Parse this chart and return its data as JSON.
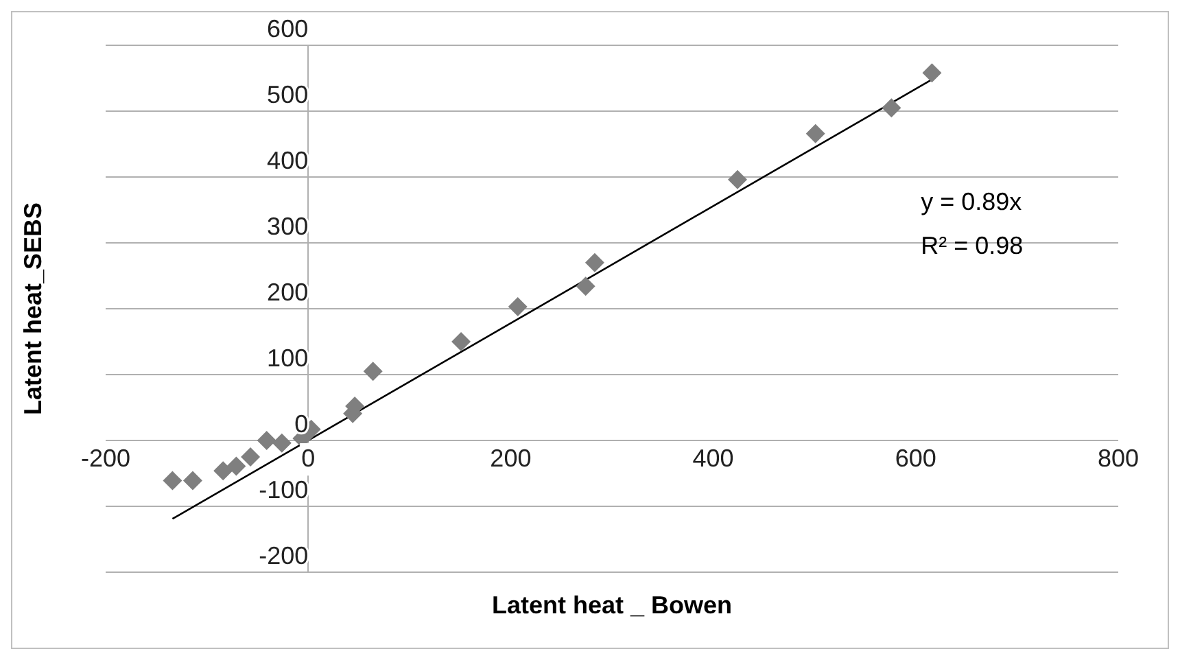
{
  "chart_data": {
    "type": "scatter",
    "xlabel": "Latent heat _ Bowen",
    "ylabel": "Latent heat_SEBS",
    "x": [
      -134,
      -114,
      -84,
      -71,
      -57,
      -41,
      -26,
      -6,
      3,
      44,
      46,
      64,
      151,
      207,
      274,
      283,
      424,
      501,
      576,
      616
    ],
    "series": [
      {
        "color": "#7f7f7f",
        "marker": "diamond",
        "values": [
          -61,
          -61,
          -46,
          -39,
          -25,
          0,
          -4,
          3,
          17,
          41,
          52,
          105,
          150,
          203,
          234,
          270,
          396,
          466,
          505,
          558
        ]
      },
      {
        "type": "line",
        "color": "#000000",
        "marker": "none",
        "x": [
          -134,
          616
        ],
        "values": [
          -119,
          548
        ]
      }
    ],
    "xlim": [
      -200,
      800
    ],
    "xticks": [
      -200,
      0,
      200,
      400,
      600,
      800
    ],
    "ylim": [
      -200,
      600
    ],
    "yticks": [
      -200,
      -100,
      0,
      100,
      200,
      300,
      400,
      500,
      600
    ],
    "grid": "y",
    "legend": false,
    "annotations": [
      "y = 0.89x",
      "R² = 0.98"
    ]
  }
}
